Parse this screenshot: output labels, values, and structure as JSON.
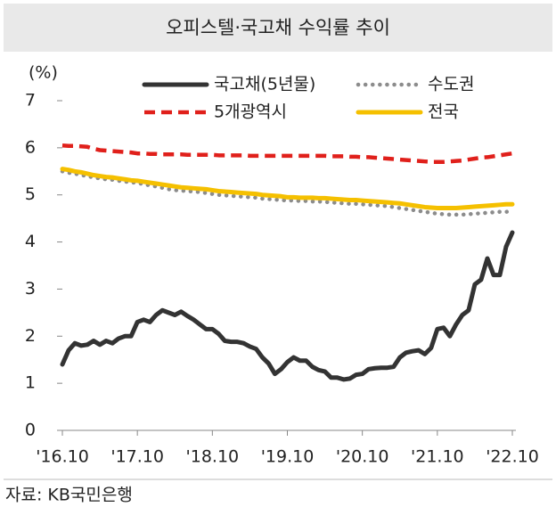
{
  "chart_data": {
    "type": "line",
    "title": "오피스텔·국고채 수익률 추이",
    "y_unit_label": "(%)",
    "source": "자료: KB국민은행",
    "categories": [
      "'16.10",
      null,
      null,
      null,
      null,
      null,
      null,
      null,
      null,
      null,
      null,
      null,
      "'17.10",
      null,
      null,
      null,
      null,
      null,
      null,
      null,
      null,
      null,
      null,
      null,
      "'18.10",
      null,
      null,
      null,
      null,
      null,
      null,
      null,
      null,
      null,
      null,
      null,
      "'19.10",
      null,
      null,
      null,
      null,
      null,
      null,
      null,
      null,
      null,
      null,
      null,
      "'20.10",
      null,
      null,
      null,
      null,
      null,
      null,
      null,
      null,
      null,
      null,
      null,
      "'21.10",
      null,
      null,
      null,
      null,
      null,
      null,
      null,
      null,
      null,
      null,
      null,
      "'22.10"
    ],
    "ylim": [
      0,
      7
    ],
    "yticks": [
      0,
      1,
      2,
      3,
      4,
      5,
      6,
      7
    ],
    "series": [
      {
        "name": "국고채(5년물)",
        "color": "#333333",
        "style": "solid",
        "values": [
          1.4,
          1.7,
          1.85,
          1.8,
          1.82,
          1.9,
          1.82,
          1.9,
          1.85,
          1.95,
          2.0,
          2.0,
          2.3,
          2.35,
          2.3,
          2.45,
          2.55,
          2.5,
          2.45,
          2.52,
          2.43,
          2.35,
          2.25,
          2.15,
          2.15,
          2.05,
          1.9,
          1.88,
          1.88,
          1.85,
          1.78,
          1.73,
          1.55,
          1.42,
          1.2,
          1.3,
          1.45,
          1.55,
          1.48,
          1.48,
          1.35,
          1.28,
          1.25,
          1.12,
          1.12,
          1.08,
          1.1,
          1.18,
          1.2,
          1.3,
          1.32,
          1.33,
          1.33,
          1.35,
          1.55,
          1.65,
          1.68,
          1.7,
          1.62,
          1.75,
          2.15,
          2.18,
          2.0,
          2.25,
          2.45,
          2.55,
          3.1,
          3.2,
          3.65,
          3.3,
          3.3,
          3.9,
          4.2
        ]
      },
      {
        "name": "수도권",
        "color": "#8c8c8c",
        "style": "dotted",
        "values": [
          5.5,
          5.47,
          5.45,
          5.42,
          5.4,
          5.37,
          5.35,
          5.33,
          5.32,
          5.3,
          5.28,
          5.27,
          5.25,
          5.23,
          5.2,
          5.18,
          5.15,
          5.12,
          5.1,
          5.09,
          5.08,
          5.07,
          5.06,
          5.04,
          5.02,
          5.0,
          4.99,
          4.98,
          4.97,
          4.96,
          4.95,
          4.94,
          4.92,
          4.91,
          4.9,
          4.89,
          4.88,
          4.88,
          4.87,
          4.87,
          4.86,
          4.86,
          4.85,
          4.84,
          4.83,
          4.82,
          4.81,
          4.81,
          4.8,
          4.79,
          4.78,
          4.77,
          4.76,
          4.74,
          4.72,
          4.7,
          4.68,
          4.66,
          4.64,
          4.62,
          4.6,
          4.59,
          4.58,
          4.58,
          4.58,
          4.59,
          4.6,
          4.61,
          4.62,
          4.63,
          4.64,
          4.64,
          4.65
        ]
      },
      {
        "name": "5개광역시",
        "color": "#e0201b",
        "style": "dashed",
        "values": [
          6.05,
          6.04,
          6.04,
          6.03,
          6.02,
          5.98,
          5.95,
          5.94,
          5.93,
          5.92,
          5.91,
          5.9,
          5.88,
          5.88,
          5.87,
          5.87,
          5.86,
          5.86,
          5.86,
          5.86,
          5.85,
          5.85,
          5.85,
          5.85,
          5.85,
          5.84,
          5.84,
          5.84,
          5.84,
          5.84,
          5.83,
          5.83,
          5.83,
          5.83,
          5.83,
          5.83,
          5.83,
          5.83,
          5.83,
          5.83,
          5.83,
          5.83,
          5.83,
          5.82,
          5.82,
          5.82,
          5.81,
          5.81,
          5.8,
          5.8,
          5.79,
          5.78,
          5.77,
          5.76,
          5.75,
          5.74,
          5.73,
          5.72,
          5.71,
          5.7,
          5.7,
          5.7,
          5.71,
          5.72,
          5.73,
          5.75,
          5.77,
          5.79,
          5.8,
          5.82,
          5.84,
          5.86,
          5.88
        ]
      },
      {
        "name": "전국",
        "color": "#f5c000",
        "style": "solid",
        "values": [
          5.55,
          5.53,
          5.5,
          5.48,
          5.45,
          5.42,
          5.4,
          5.38,
          5.37,
          5.35,
          5.33,
          5.31,
          5.3,
          5.28,
          5.26,
          5.24,
          5.22,
          5.2,
          5.18,
          5.16,
          5.15,
          5.14,
          5.13,
          5.12,
          5.1,
          5.08,
          5.07,
          5.06,
          5.05,
          5.04,
          5.03,
          5.02,
          5.0,
          4.99,
          4.98,
          4.97,
          4.95,
          4.95,
          4.94,
          4.94,
          4.94,
          4.93,
          4.93,
          4.92,
          4.91,
          4.9,
          4.89,
          4.89,
          4.88,
          4.87,
          4.86,
          4.85,
          4.84,
          4.83,
          4.82,
          4.8,
          4.78,
          4.76,
          4.74,
          4.73,
          4.72,
          4.72,
          4.72,
          4.72,
          4.73,
          4.74,
          4.75,
          4.76,
          4.77,
          4.78,
          4.79,
          4.8,
          4.8
        ]
      }
    ]
  }
}
